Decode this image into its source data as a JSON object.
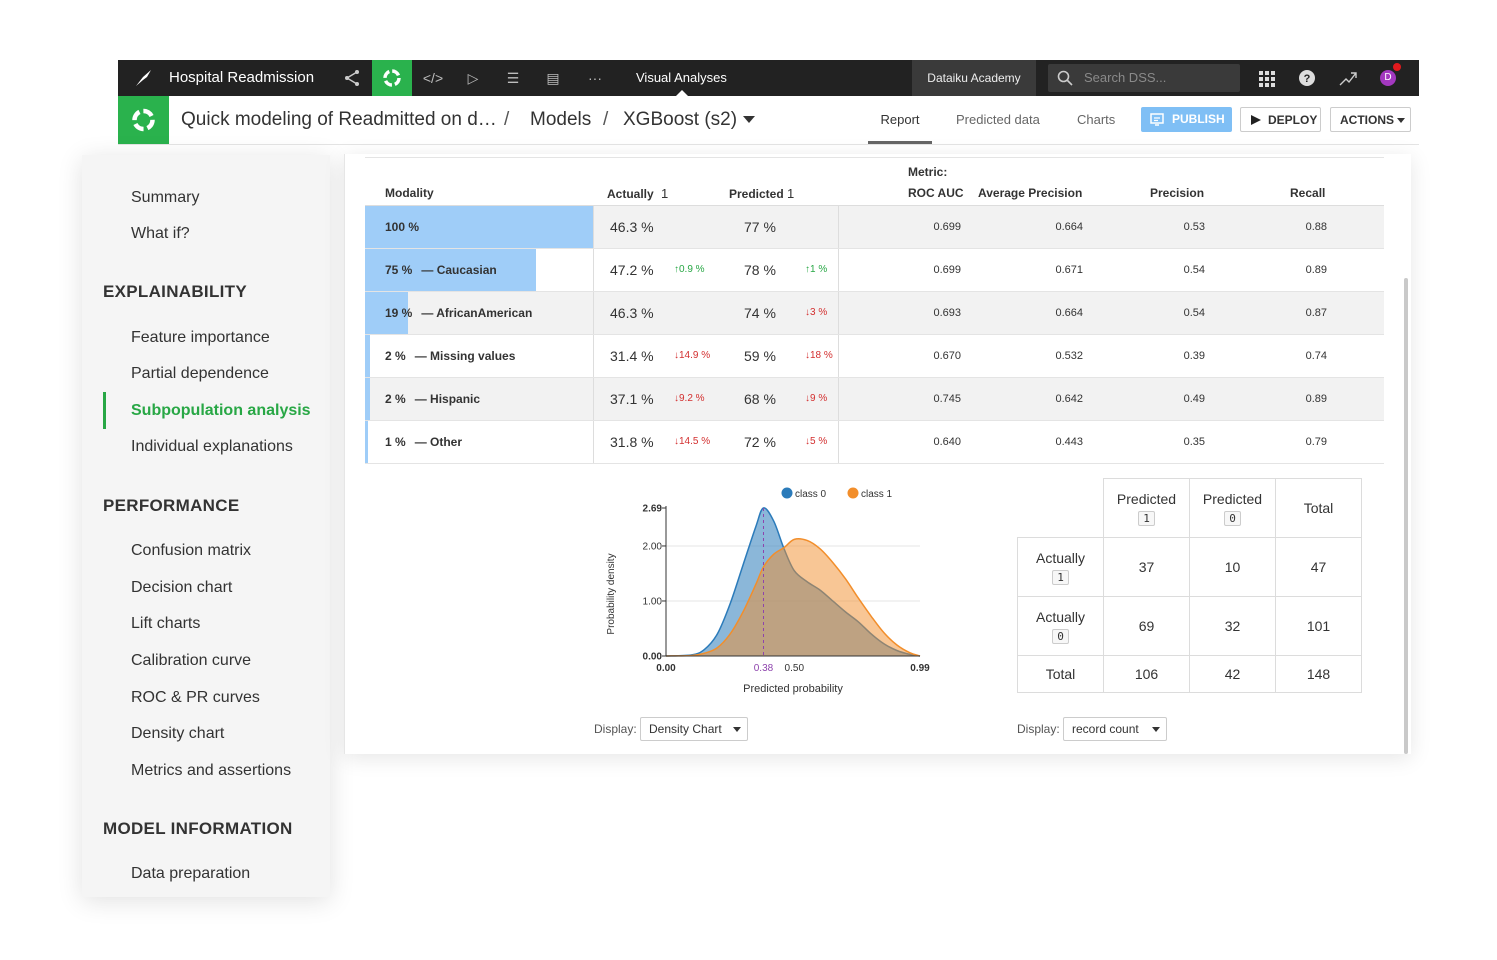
{
  "topbar": {
    "project": "Hospital Readmission",
    "visual_analyses": "Visual Analyses",
    "academy": "Dataiku Academy",
    "search_placeholder": "Search DSS...",
    "avatar_letter": "D"
  },
  "header": {
    "breadcrumb": [
      "Quick modeling of Readmitted on d…",
      "/",
      "Models",
      "/",
      "XGBoost (s2)"
    ],
    "tabs": [
      "Report",
      "Predicted data",
      "Charts"
    ],
    "publish": "PUBLISH",
    "deploy": "DEPLOY",
    "actions": "ACTIONS"
  },
  "sidebar": {
    "top_items": [
      "Summary",
      "What if?"
    ],
    "sections": [
      {
        "title": "EXPLAINABILITY",
        "items": [
          "Feature importance",
          "Partial dependence",
          "Subpopulation analysis",
          "Individual explanations"
        ]
      },
      {
        "title": "PERFORMANCE",
        "items": [
          "Confusion matrix",
          "Decision chart",
          "Lift charts",
          "Calibration curve",
          "ROC & PR curves",
          "Density chart",
          "Metrics and assertions"
        ]
      },
      {
        "title": "MODEL INFORMATION",
        "items": [
          "Data preparation"
        ]
      }
    ],
    "active": "Subpopulation analysis"
  },
  "table": {
    "headers": {
      "modality": "Modality",
      "actually": "Actually",
      "actually_class": "1",
      "predicted": "Predicted",
      "predicted_class": "1",
      "metric_label": "Metric:",
      "roc_auc": "ROC AUC",
      "avg_precision": "Average Precision",
      "precision": "Precision",
      "recall": "Recall"
    },
    "rows": [
      {
        "pct": "100 %",
        "name": "",
        "share": 1.0,
        "actually": "46.3 %",
        "act_delta": "",
        "act_dir": "",
        "predicted": "77 %",
        "pred_delta": "",
        "pred_dir": "",
        "roc": "0.699",
        "ap": "0.664",
        "precision": "0.53",
        "recall": "0.88"
      },
      {
        "pct": "75 %",
        "name": "— Caucasian",
        "share": 0.75,
        "actually": "47.2 %",
        "act_delta": "0.9 %",
        "act_dir": "up",
        "predicted": "78 %",
        "pred_delta": "1 %",
        "pred_dir": "up",
        "roc": "0.699",
        "ap": "0.671",
        "precision": "0.54",
        "recall": "0.89"
      },
      {
        "pct": "19 %",
        "name": "— AfricanAmerican",
        "share": 0.19,
        "actually": "46.3 %",
        "act_delta": "",
        "act_dir": "",
        "predicted": "74 %",
        "pred_delta": "3 %",
        "pred_dir": "down",
        "roc": "0.693",
        "ap": "0.664",
        "precision": "0.54",
        "recall": "0.87"
      },
      {
        "pct": "2 %",
        "name": "— Missing values",
        "share": 0.02,
        "actually": "31.4 %",
        "act_delta": "14.9 %",
        "act_dir": "down",
        "predicted": "59 %",
        "pred_delta": "18 %",
        "pred_dir": "down",
        "roc": "0.670",
        "ap": "0.532",
        "precision": "0.39",
        "recall": "0.74"
      },
      {
        "pct": "2 %",
        "name": "— Hispanic",
        "share": 0.02,
        "actually": "37.1 %",
        "act_delta": "9.2 %",
        "act_dir": "down",
        "predicted": "68 %",
        "pred_delta": "9 %",
        "pred_dir": "down",
        "roc": "0.745",
        "ap": "0.642",
        "precision": "0.49",
        "recall": "0.89"
      },
      {
        "pct": "1 %",
        "name": "— Other",
        "share": 0.01,
        "actually": "31.8 %",
        "act_delta": "14.5 %",
        "act_dir": "down",
        "predicted": "72 %",
        "pred_delta": "5 %",
        "pred_dir": "down",
        "roc": "0.640",
        "ap": "0.443",
        "precision": "0.35",
        "recall": "0.79"
      }
    ]
  },
  "chart_data": {
    "type": "area",
    "xlabel": "Predicted probability",
    "ylabel": "Probability density",
    "xlim": [
      0.0,
      0.99
    ],
    "ylim": [
      0.0,
      2.69
    ],
    "x_ticks": [
      "0.00",
      "0.38",
      "0.50",
      "0.99"
    ],
    "y_ticks": [
      "0.00",
      "1.00",
      "2.00",
      "2.69"
    ],
    "threshold": 0.38,
    "legend_position": "top",
    "series": [
      {
        "name": "class 0",
        "color": "#2b7bba",
        "x": [
          0.0,
          0.1,
          0.15,
          0.2,
          0.25,
          0.3,
          0.35,
          0.38,
          0.42,
          0.46,
          0.5,
          0.55,
          0.6,
          0.65,
          0.7,
          0.75,
          0.8,
          0.85,
          0.9,
          0.95,
          0.99
        ],
        "y": [
          0.0,
          0.02,
          0.12,
          0.4,
          0.95,
          1.65,
          2.35,
          2.69,
          2.45,
          1.95,
          1.55,
          1.35,
          1.2,
          1.0,
          0.8,
          0.62,
          0.4,
          0.22,
          0.1,
          0.03,
          0.0
        ]
      },
      {
        "name": "class 1",
        "color": "#f28e2b",
        "x": [
          0.0,
          0.1,
          0.15,
          0.2,
          0.25,
          0.3,
          0.35,
          0.38,
          0.42,
          0.46,
          0.5,
          0.55,
          0.6,
          0.65,
          0.7,
          0.75,
          0.8,
          0.85,
          0.9,
          0.95,
          0.99
        ],
        "y": [
          0.0,
          0.01,
          0.05,
          0.15,
          0.4,
          0.8,
          1.3,
          1.62,
          1.85,
          1.97,
          2.12,
          2.1,
          1.95,
          1.7,
          1.4,
          1.05,
          0.72,
          0.42,
          0.2,
          0.06,
          0.0
        ]
      }
    ]
  },
  "density_display": {
    "label": "Display:",
    "value": "Density Chart"
  },
  "confusion": {
    "predicted_label": "Predicted",
    "actually_label": "Actually",
    "total_label": "Total",
    "class_a": "1",
    "class_b": "0",
    "cells": [
      [
        "37",
        "10",
        "47"
      ],
      [
        "69",
        "32",
        "101"
      ],
      [
        "106",
        "42",
        "148"
      ]
    ]
  },
  "confusion_display": {
    "label": "Display:",
    "value": "record count"
  }
}
